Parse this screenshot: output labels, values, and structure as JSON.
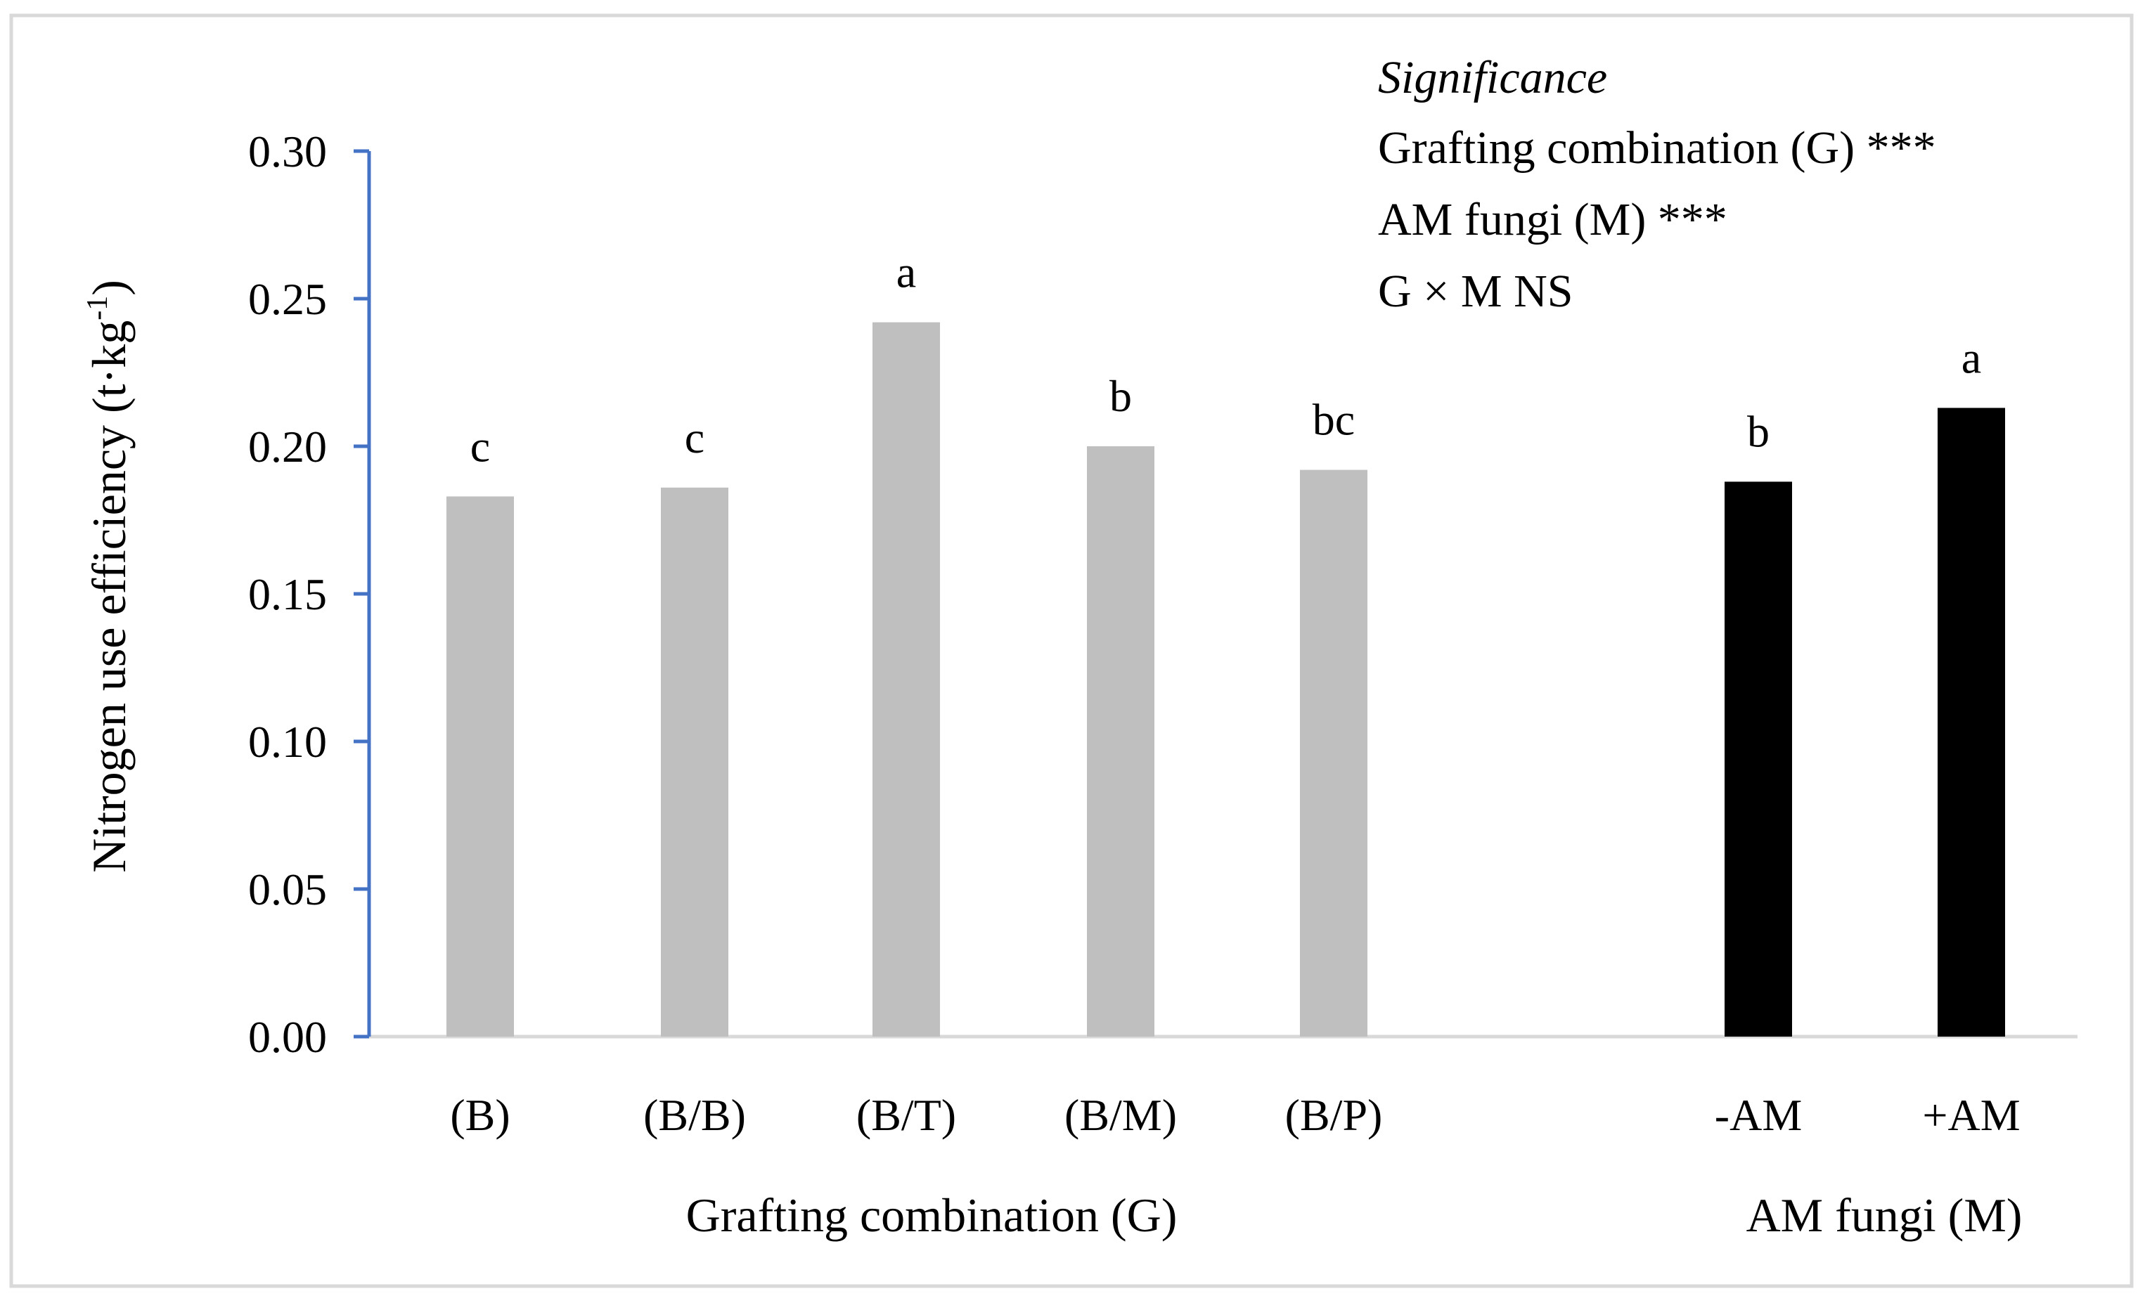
{
  "chart_data": {
    "type": "bar",
    "ylabel": "Nitrogen use efficiency (t·kg",
    "ylabel_sup": "-1",
    "ylabel_close": ")",
    "ylim": [
      0,
      0.3
    ],
    "yticks": [
      "0.00",
      "0.05",
      "0.10",
      "0.15",
      "0.20",
      "0.25",
      "0.30"
    ],
    "groups": [
      {
        "name": "Grafting combination (G)",
        "color": "#bfbfbf",
        "categories": [
          "(B)",
          "(B/B)",
          "(B/T)",
          "(B/M)",
          "(B/P)"
        ],
        "values": [
          0.183,
          0.186,
          0.242,
          0.2,
          0.192
        ],
        "letters": [
          "c",
          "c",
          "a",
          "b",
          "bc"
        ]
      },
      {
        "name": "AM fungi (M)",
        "color": "#000000",
        "categories": [
          "-AM",
          "+AM"
        ],
        "values": [
          0.188,
          0.213
        ],
        "letters": [
          "b",
          "a"
        ]
      }
    ],
    "annotation": {
      "title": "Significance",
      "lines": [
        "Grafting combination (G) ***",
        "AM fungi (M) ***",
        "G × M NS"
      ]
    },
    "colors": {
      "axis": "#4472c4",
      "baseline": "#d9d9d9",
      "frame": "#d9d9d9"
    }
  }
}
